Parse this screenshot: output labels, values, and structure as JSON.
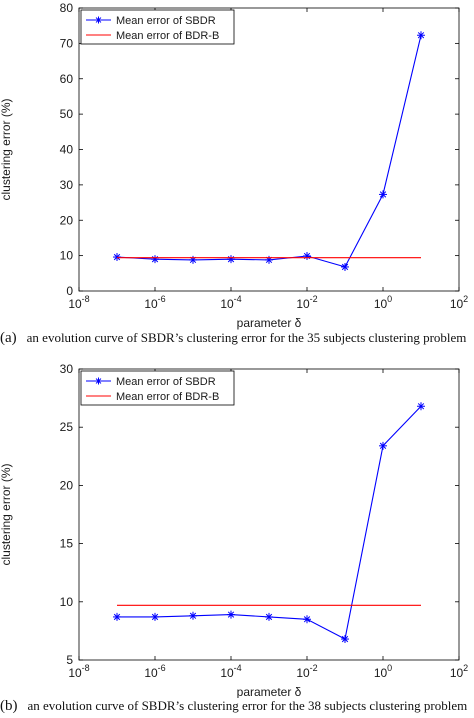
{
  "captions": [
    {
      "label": "(a)",
      "text": "an evolution curve of SBDR’s clustering error for the 35 subjects clustering problem"
    },
    {
      "label": "(b)",
      "text": "an evolution curve of SBDR’s clustering error for the 38 subjects clustering problem"
    }
  ],
  "chart_data": [
    {
      "type": "line",
      "xscale": "log",
      "xlabel": "parameter δ",
      "ylabel": "clustering error (%)",
      "xlim": [
        1e-08,
        100
      ],
      "ylim": [
        0,
        80
      ],
      "x_ticks": [
        {
          "base": "10",
          "exp": "-8"
        },
        {
          "base": "10",
          "exp": "-6"
        },
        {
          "base": "10",
          "exp": "-4"
        },
        {
          "base": "10",
          "exp": "-2"
        },
        {
          "base": "10",
          "exp": "0"
        },
        {
          "base": "10",
          "exp": "2"
        }
      ],
      "y_ticks": [
        "0",
        "10",
        "20",
        "30",
        "40",
        "50",
        "60",
        "70",
        "80"
      ],
      "legend_position": "top-left",
      "series": [
        {
          "name": "Mean error of SBDR",
          "color": "#0000ff",
          "marker": "asterisk",
          "x": [
            1e-07,
            1e-06,
            1e-05,
            0.0001,
            0.001,
            0.01,
            0.1,
            1,
            10
          ],
          "y": [
            9.6,
            9.0,
            8.8,
            9.0,
            8.8,
            9.9,
            6.8,
            27.3,
            72.3
          ]
        },
        {
          "name": "Mean error of BDR-B",
          "color": "#ff0000",
          "marker": "none",
          "x": [
            1e-07,
            10
          ],
          "y": [
            9.4,
            9.4
          ]
        }
      ]
    },
    {
      "type": "line",
      "xscale": "log",
      "xlabel": "parameter δ",
      "ylabel": "clustering error (%)",
      "xlim": [
        1e-08,
        100
      ],
      "ylim": [
        5,
        30
      ],
      "x_ticks": [
        {
          "base": "10",
          "exp": "-8"
        },
        {
          "base": "10",
          "exp": "-6"
        },
        {
          "base": "10",
          "exp": "-4"
        },
        {
          "base": "10",
          "exp": "-2"
        },
        {
          "base": "10",
          "exp": "0"
        },
        {
          "base": "10",
          "exp": "2"
        }
      ],
      "y_ticks": [
        "5",
        "10",
        "15",
        "20",
        "25",
        "30"
      ],
      "legend_position": "top-left",
      "series": [
        {
          "name": "Mean error of SBDR",
          "color": "#0000ff",
          "marker": "asterisk",
          "x": [
            1e-07,
            1e-06,
            1e-05,
            0.0001,
            0.001,
            0.01,
            0.1,
            1,
            10
          ],
          "y": [
            8.7,
            8.7,
            8.8,
            8.9,
            8.7,
            8.5,
            6.8,
            23.4,
            26.8
          ]
        },
        {
          "name": "Mean error of BDR-B",
          "color": "#ff0000",
          "marker": "none",
          "x": [
            1e-07,
            10
          ],
          "y": [
            9.7,
            9.7
          ]
        }
      ]
    }
  ]
}
